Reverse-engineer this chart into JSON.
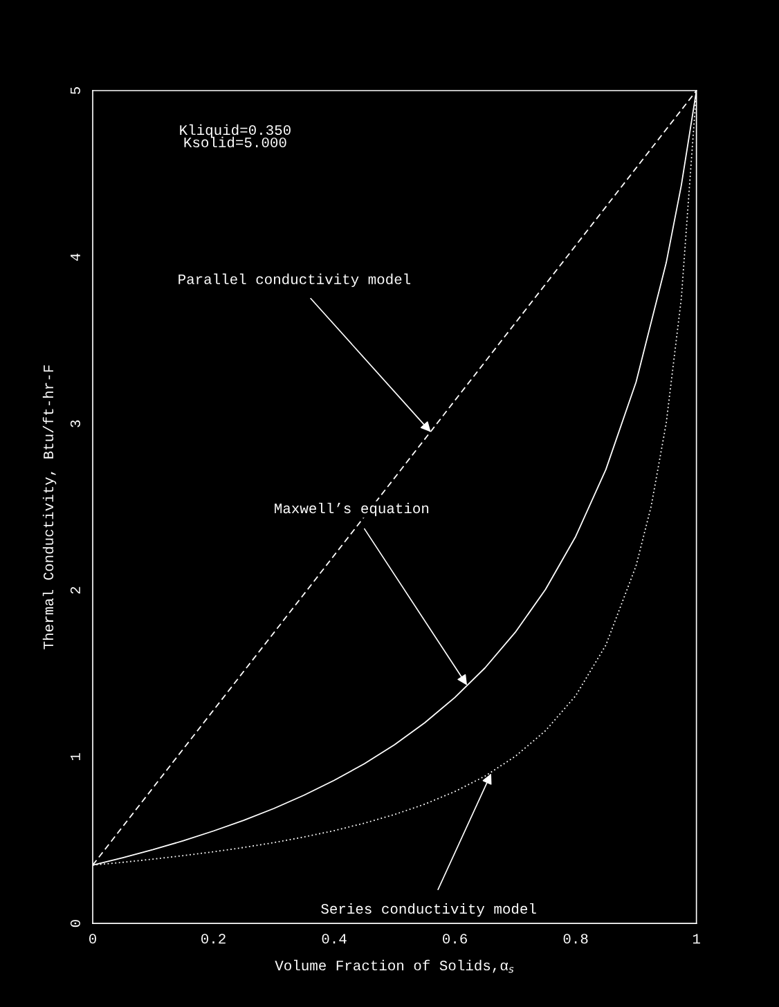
{
  "chart_data": {
    "type": "line",
    "xlabel": "Volume Fraction of Solids,α$_{s}$",
    "ylabel": "Thermal Conductivity, Btu/ft-hr-F",
    "xlim": [
      0,
      1
    ],
    "ylim": [
      0,
      5
    ],
    "xticks": [
      0,
      0.2,
      0.4,
      0.6,
      0.8,
      1
    ],
    "yticks": [
      0,
      1,
      2,
      3,
      4,
      5
    ],
    "grid": false,
    "legend": false,
    "marker": "none",
    "series": [
      {
        "color": "#ffffff",
        "line_style": "dashed",
        "x": [
          0,
          1
        ],
        "values": [
          0.35,
          5.0
        ]
      },
      {
        "color": "#ffffff",
        "line_style": "solid",
        "x": [
          0,
          0.05,
          0.1,
          0.15,
          0.2,
          0.25,
          0.3,
          0.35,
          0.4,
          0.45,
          0.5,
          0.55,
          0.6,
          0.65,
          0.7,
          0.75,
          0.8,
          0.85,
          0.9,
          0.95,
          0.975,
          1
        ],
        "values": [
          0.35,
          0.395,
          0.443,
          0.496,
          0.555,
          0.619,
          0.69,
          0.77,
          0.859,
          0.959,
          1.073,
          1.205,
          1.357,
          1.535,
          1.748,
          2.005,
          2.323,
          2.725,
          3.25,
          3.967,
          4.432,
          5.0
        ]
      },
      {
        "color": "#ffffff",
        "line_style": "dotted",
        "x": [
          0,
          0.05,
          0.1,
          0.15,
          0.2,
          0.25,
          0.3,
          0.35,
          0.4,
          0.45,
          0.5,
          0.55,
          0.6,
          0.65,
          0.7,
          0.75,
          0.8,
          0.85,
          0.9,
          0.925,
          0.95,
          0.975,
          1
        ],
        "values": [
          0.35,
          0.367,
          0.386,
          0.407,
          0.43,
          0.456,
          0.485,
          0.519,
          0.557,
          0.602,
          0.654,
          0.716,
          0.792,
          0.885,
          1.003,
          1.157,
          1.367,
          1.671,
          2.147,
          2.504,
          3.004,
          3.753,
          5.0
        ]
      }
    ],
    "annotations": [
      "Kliquid=0.350\nKsolid=5.000",
      {
        "text": "Parallel conductivity model",
        "x": 0.56,
        "y": 2.95
      },
      {
        "text": "Maxwell’s equation",
        "x": 0.62,
        "y": 1.43
      },
      {
        "text": "Series conductivity model",
        "x": 0.66,
        "y": 0.9
      }
    ]
  }
}
